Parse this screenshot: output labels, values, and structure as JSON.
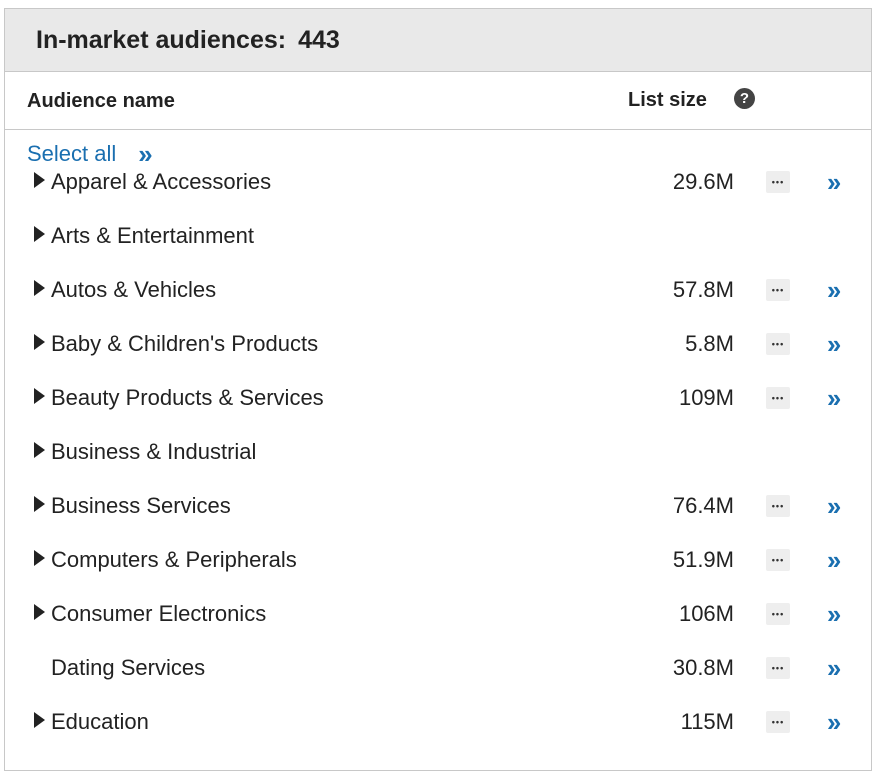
{
  "header": {
    "title": "In-market audiences:",
    "count": "443"
  },
  "columns": {
    "name_label": "Audience name",
    "size_label": "List size",
    "help_icon": "question-circle-icon"
  },
  "select_all": {
    "label": "Select all",
    "icon": "double-chevron-right-icon"
  },
  "rows": [
    {
      "name": "Apparel & Accessories",
      "size": "29.6M",
      "expandable": true,
      "actions": true
    },
    {
      "name": "Arts & Entertainment",
      "size": "",
      "expandable": true,
      "actions": false
    },
    {
      "name": "Autos & Vehicles",
      "size": "57.8M",
      "expandable": true,
      "actions": true
    },
    {
      "name": "Baby & Children's Products",
      "size": "5.8M",
      "expandable": true,
      "actions": true
    },
    {
      "name": "Beauty Products & Services",
      "size": "109M",
      "expandable": true,
      "actions": true
    },
    {
      "name": "Business & Industrial",
      "size": "",
      "expandable": true,
      "actions": false
    },
    {
      "name": "Business Services",
      "size": "76.4M",
      "expandable": true,
      "actions": true
    },
    {
      "name": "Computers & Peripherals",
      "size": "51.9M",
      "expandable": true,
      "actions": true
    },
    {
      "name": "Consumer Electronics",
      "size": "106M",
      "expandable": true,
      "actions": true
    },
    {
      "name": "Dating Services",
      "size": "30.8M",
      "expandable": false,
      "actions": true
    },
    {
      "name": "Education",
      "size": "115M",
      "expandable": true,
      "actions": true
    }
  ],
  "colors": {
    "accent": "#1a6fb0",
    "header_bg": "#e9e9e9",
    "border": "#c8c8c8"
  }
}
